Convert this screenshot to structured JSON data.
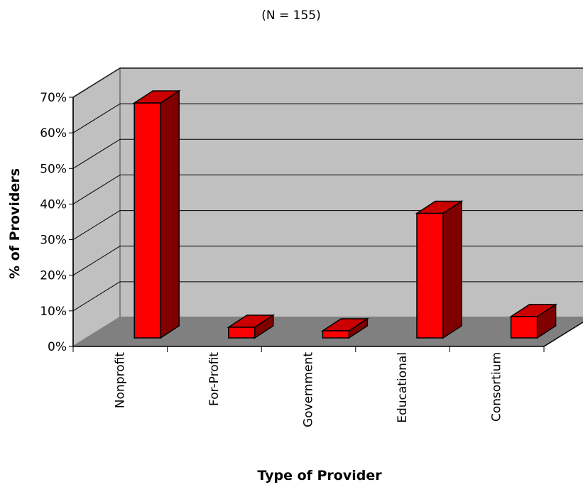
{
  "chart_data": {
    "type": "bar",
    "subtitle": "(N = 155)",
    "xlabel": "Type of Provider",
    "ylabel": "% of Providers",
    "categories": [
      "Nonprofit",
      "For-Profit",
      "Government",
      "Educational",
      "Consortium"
    ],
    "values": [
      66,
      3,
      2,
      35,
      6
    ],
    "y_ticks": [
      "0%",
      "10%",
      "20%",
      "30%",
      "40%",
      "50%",
      "60%",
      "70%"
    ],
    "ylim": [
      0,
      70
    ],
    "grid": true,
    "legend": "none",
    "three_d": true
  },
  "colors": {
    "bar_front": "#ff0000",
    "bar_top": "#cc0000",
    "bar_side": "#800000",
    "back_wall": "#c0c0c0",
    "side_wall": "#c0c0c0",
    "floor": "#808080"
  }
}
